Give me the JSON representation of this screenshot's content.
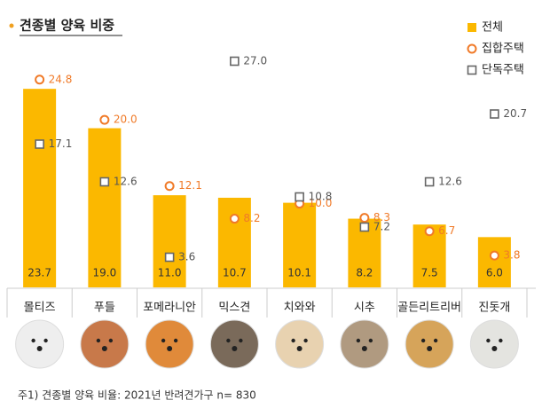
{
  "chart_data": {
    "type": "bar",
    "title": "견종별 양육 비중",
    "footnote": "주1) 견종별 양육 비율: 2021년 반려견가구 n= 830",
    "categories": [
      "몰티즈",
      "푸들",
      "포메라니안",
      "믹스견",
      "치와와",
      "시추",
      "골든리트리버",
      "진돗개"
    ],
    "series": [
      {
        "name": "전체",
        "color": "#fbb800",
        "marker": "bar",
        "values": [
          23.7,
          19.0,
          11.0,
          10.7,
          10.1,
          8.2,
          7.5,
          6.0
        ],
        "value_labels": [
          "23.7",
          "19.0",
          "11.0",
          "10.7",
          "10.1",
          "8.2",
          "7.5",
          "6.0"
        ]
      },
      {
        "name": "집합주택",
        "color": "#f07a28",
        "marker": "circle",
        "values": [
          24.8,
          20.0,
          12.1,
          8.2,
          10.0,
          8.3,
          6.7,
          3.8
        ],
        "value_labels": [
          "24.8",
          "20.0",
          "12.1",
          "8.2",
          "10.0",
          "8.3",
          "6.7",
          "3.8"
        ]
      },
      {
        "name": "단독주택",
        "color": "#666666",
        "marker": "square",
        "values": [
          17.1,
          12.6,
          3.6,
          27.0,
          10.8,
          7.2,
          12.6,
          20.7
        ],
        "value_labels": [
          "17.1",
          "12.6",
          "3.6",
          "27.0",
          "10.8",
          "7.2",
          "12.6",
          "20.7"
        ]
      }
    ]
  }
}
